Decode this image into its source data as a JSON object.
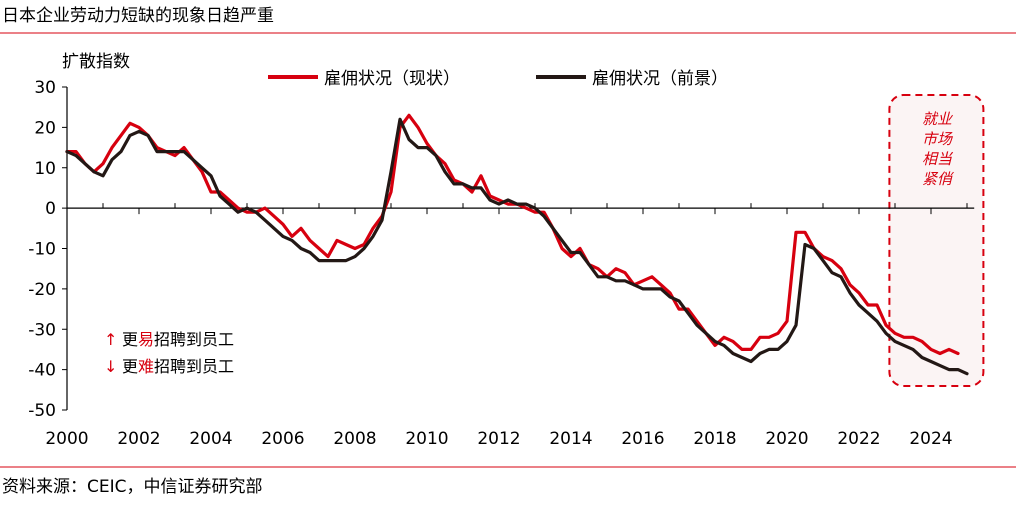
{
  "title": "日本企业劳动力短缺的现象日趋严重",
  "source": "资料来源：CEIC，中信证券研究部",
  "colors": {
    "series_current": "#d7000f",
    "series_outlook": "#231815",
    "accent": "#d7000f",
    "highlight_fill": "#fbf4f4"
  },
  "annotations": {
    "up_arrow": "↑",
    "down_arrow": "↓",
    "easier_pre": "更",
    "easier_key": "易",
    "easier_post": "招聘到员工",
    "harder_pre": "更",
    "harder_key": "难",
    "harder_post": "招聘到员工",
    "highlight_lines": [
      "就业",
      "市场",
      "相当",
      "紧俏"
    ]
  },
  "chart_data": {
    "type": "line",
    "title": "",
    "ylabel": "扩散指数",
    "xlabel": "",
    "ylim": [
      -50,
      30
    ],
    "xlim": [
      2000,
      2025.5
    ],
    "yticks": [
      30,
      20,
      10,
      0,
      -10,
      -20,
      -30,
      -40,
      -50
    ],
    "xticks": [
      2000,
      2002,
      2004,
      2006,
      2008,
      2010,
      2012,
      2014,
      2016,
      2018,
      2020,
      2022,
      2024
    ],
    "legend_placement": "top-center",
    "grid": false,
    "x_frequency": "quarterly",
    "highlight_region": {
      "from": 2022.9,
      "to": 2025.4,
      "label": "就业市场相当紧俏"
    },
    "series": [
      {
        "name": "雇佣状况（现状）",
        "start": 2000.0,
        "values": [
          14,
          14,
          11,
          9,
          11,
          15,
          18,
          21,
          20,
          18,
          15,
          14,
          13,
          15,
          12,
          9,
          4,
          4,
          2,
          0,
          -1,
          -1,
          0,
          -2,
          -4,
          -7,
          -5,
          -8,
          -10,
          -12,
          -8,
          -9,
          -10,
          -9,
          -5,
          -2,
          4,
          20,
          23,
          20,
          16,
          13,
          11,
          7,
          6,
          4,
          8,
          3,
          2,
          1,
          1,
          0,
          -1,
          -1,
          -5,
          -10,
          -12,
          -10,
          -14,
          -15,
          -17,
          -15,
          -16,
          -19,
          -18,
          -17,
          -19,
          -21,
          -25,
          -25,
          -28,
          -31,
          -34,
          -32,
          -33,
          -35,
          -35,
          -32,
          -32,
          -31,
          -28,
          -6,
          -6,
          -10,
          -12,
          -13,
          -15,
          -19,
          -21,
          -24,
          -24,
          -29,
          -31,
          -32,
          -32,
          -33,
          -35,
          -36,
          -35,
          -36
        ]
      },
      {
        "name": "雇佣状况（前景）",
        "start": 2000.0,
        "values": [
          14,
          13,
          11,
          9,
          8,
          12,
          14,
          18,
          19,
          18,
          14,
          14,
          14,
          14,
          12,
          10,
          8,
          3,
          1,
          -1,
          0,
          -1,
          -3,
          -5,
          -7,
          -8,
          -10,
          -11,
          -13,
          -13,
          -13,
          -13,
          -12,
          -10,
          -7,
          -3,
          9,
          22,
          17,
          15,
          15,
          13,
          9,
          6,
          6,
          5,
          5,
          2,
          1,
          2,
          1,
          1,
          0,
          -2,
          -5,
          -8,
          -11,
          -11,
          -14,
          -17,
          -17,
          -18,
          -18,
          -19,
          -20,
          -20,
          -20,
          -22,
          -23,
          -26,
          -29,
          -31,
          -33,
          -34,
          -36,
          -37,
          -38,
          -36,
          -35,
          -35,
          -33,
          -29,
          -9,
          -10,
          -13,
          -16,
          -17,
          -21,
          -24,
          -26,
          -28,
          -31,
          -33,
          -34,
          -35,
          -37,
          -38,
          -39,
          -40,
          -40,
          -41
        ]
      }
    ]
  }
}
